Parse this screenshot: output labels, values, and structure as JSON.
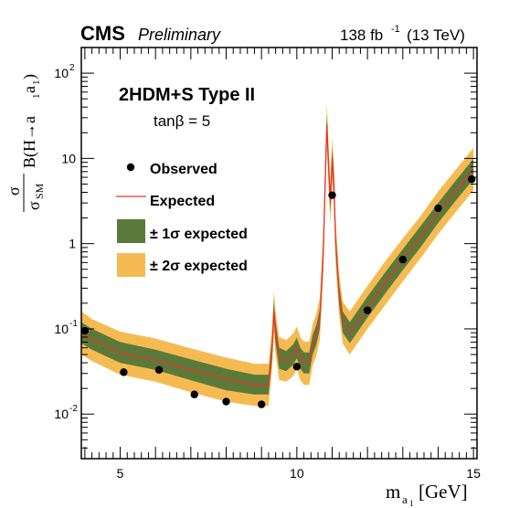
{
  "header": {
    "experiment": "CMS",
    "status": "Preliminary",
    "lumi_energy": "138 fb",
    "lumi_exponent": "-1",
    "energy": "(13 TeV)"
  },
  "annotations": {
    "model": "2HDM+S Type II",
    "parameter": "tanβ = 5"
  },
  "legend": {
    "observed": "Observed",
    "expected": "Expected",
    "one_sigma": "± 1σ expected",
    "two_sigma": "± 2σ expected"
  },
  "axes": {
    "x_label_main": "m",
    "x_label_sub": "a",
    "x_label_subsub": "1",
    "x_label_unit": "[GeV]",
    "y_label_sigma": "σ",
    "y_label_sigma_sm": "σ",
    "y_label_sm": "SM",
    "y_label_rest": "B(H→a",
    "y_label_end": "a",
    "y_label_sub1": "1",
    "y_label_sub2": "1",
    "y_label_close": ")"
  },
  "colors": {
    "one_sigma": "#5b7a3a",
    "two_sigma": "#f5bb52",
    "expected": "#e8352a",
    "observed": "#000000"
  },
  "chart_data": {
    "type": "line",
    "x_scale": "linear",
    "y_scale": "log",
    "xlim": [
      3.9,
      15.1
    ],
    "ylim": [
      0.003,
      200
    ],
    "x_ticks": [
      5,
      10,
      15
    ],
    "y_ticks": [
      {
        "value": 0.01,
        "base": "10",
        "exp": "-2"
      },
      {
        "value": 0.1,
        "base": "10",
        "exp": "-1"
      },
      {
        "value": 1,
        "base": "1",
        "exp": ""
      },
      {
        "value": 10,
        "base": "10",
        "exp": ""
      },
      {
        "value": 100,
        "base": "10",
        "exp": "2"
      }
    ],
    "observed": [
      {
        "x": 4.0,
        "y": 0.095
      },
      {
        "x": 5.1,
        "y": 0.031
      },
      {
        "x": 6.1,
        "y": 0.033
      },
      {
        "x": 7.1,
        "y": 0.017
      },
      {
        "x": 8.0,
        "y": 0.014
      },
      {
        "x": 9.0,
        "y": 0.013
      },
      {
        "x": 10.0,
        "y": 0.036
      },
      {
        "x": 11.0,
        "y": 3.7
      },
      {
        "x": 12.0,
        "y": 0.165
      },
      {
        "x": 13.0,
        "y": 0.65
      },
      {
        "x": 14.0,
        "y": 2.6
      },
      {
        "x": 14.95,
        "y": 5.7
      }
    ],
    "expected": {
      "x": [
        3.9,
        4.2,
        5.0,
        6.0,
        7.0,
        8.0,
        8.8,
        9.2,
        9.3,
        9.35,
        9.4,
        9.5,
        9.7,
        9.9,
        10.0,
        10.1,
        10.2,
        10.35,
        10.45,
        10.55,
        10.65,
        10.75,
        10.8,
        10.85,
        10.9,
        10.95,
        11.0,
        11.05,
        11.1,
        11.2,
        11.3,
        11.5,
        12.0,
        12.5,
        13.0,
        13.5,
        14.0,
        14.5,
        15.0
      ],
      "median": [
        0.09,
        0.075,
        0.052,
        0.043,
        0.033,
        0.026,
        0.022,
        0.022,
        0.06,
        0.16,
        0.09,
        0.045,
        0.042,
        0.05,
        0.06,
        0.045,
        0.04,
        0.04,
        0.065,
        0.085,
        0.13,
        0.8,
        5,
        25,
        8,
        3,
        10,
        5,
        1.0,
        0.25,
        0.12,
        0.09,
        0.18,
        0.35,
        0.65,
        1.2,
        2.3,
        4.2,
        7.5
      ],
      "one_sigma_lo": [
        0.068,
        0.057,
        0.04,
        0.033,
        0.025,
        0.019,
        0.017,
        0.017,
        0.045,
        0.12,
        0.068,
        0.034,
        0.032,
        0.038,
        0.045,
        0.034,
        0.03,
        0.03,
        0.05,
        0.065,
        0.1,
        0.6,
        3.8,
        19,
        6,
        2.3,
        7.6,
        3.8,
        0.76,
        0.19,
        0.09,
        0.068,
        0.136,
        0.26,
        0.49,
        0.9,
        1.75,
        3.2,
        5.7
      ],
      "one_sigma_hi": [
        0.12,
        0.1,
        0.07,
        0.057,
        0.044,
        0.034,
        0.029,
        0.029,
        0.079,
        0.21,
        0.12,
        0.06,
        0.055,
        0.066,
        0.079,
        0.06,
        0.053,
        0.053,
        0.086,
        0.11,
        0.17,
        1.05,
        6.6,
        33,
        10.5,
        4.0,
        13.2,
        6.6,
        1.3,
        0.33,
        0.16,
        0.12,
        0.24,
        0.46,
        0.86,
        1.6,
        3.0,
        5.5,
        9.9
      ],
      "two_sigma_lo": [
        0.05,
        0.042,
        0.029,
        0.024,
        0.018,
        0.014,
        0.0125,
        0.0125,
        0.034,
        0.09,
        0.05,
        0.025,
        0.024,
        0.028,
        0.034,
        0.025,
        0.022,
        0.022,
        0.037,
        0.048,
        0.074,
        0.45,
        2.8,
        14,
        4.5,
        1.7,
        5.6,
        2.8,
        0.56,
        0.14,
        0.067,
        0.05,
        0.1,
        0.19,
        0.36,
        0.67,
        1.29,
        2.35,
        4.2
      ],
      "two_sigma_hi": [
        0.16,
        0.13,
        0.093,
        0.077,
        0.059,
        0.046,
        0.039,
        0.039,
        0.106,
        0.28,
        0.16,
        0.08,
        0.074,
        0.089,
        0.106,
        0.08,
        0.071,
        0.071,
        0.115,
        0.15,
        0.23,
        1.4,
        8.9,
        44,
        14,
        5.3,
        17.7,
        8.9,
        1.77,
        0.44,
        0.21,
        0.16,
        0.32,
        0.62,
        1.15,
        2.1,
        4.1,
        7.4,
        13.3
      ]
    }
  }
}
